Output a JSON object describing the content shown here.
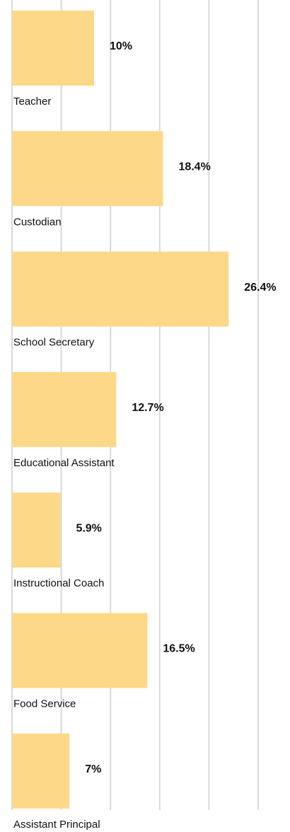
{
  "chart_data": {
    "type": "bar",
    "orientation": "horizontal",
    "categories": [
      "Teacher",
      "Custodian",
      "School Secretary",
      "Educational Assistant",
      "Instructional Coach",
      "Food Service",
      "Assistant Principal"
    ],
    "values": [
      10,
      18.4,
      26.4,
      12.7,
      5.9,
      16.5,
      7
    ],
    "value_labels": [
      "10%",
      "18.4%",
      "26.4%",
      "12.7%",
      "5.9%",
      "16.5%",
      "7%"
    ],
    "xlim": [
      0,
      30
    ],
    "grid": true,
    "legend": "none",
    "colors": {
      "bar": "#fdd888",
      "grid": "#d9d9d9",
      "text": "#111111"
    }
  }
}
